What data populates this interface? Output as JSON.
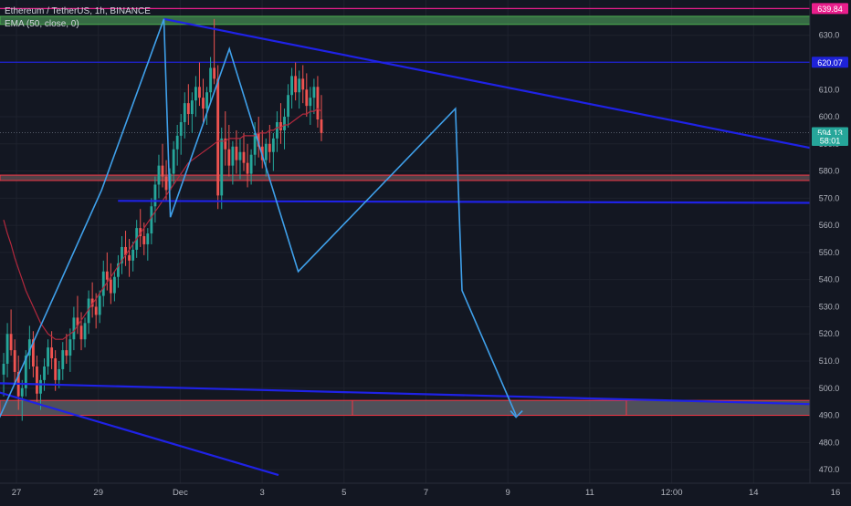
{
  "header": {
    "symbol_line": "Ethereum / TetherUS, 1h, BINANCE",
    "indicator_line": "EMA (50, close, 0)"
  },
  "chart_data": {
    "type": "candlestick",
    "currency": "USDT",
    "ylim": [
      465,
      643
    ],
    "y_ticks": [
      470,
      480,
      490,
      500,
      510,
      520,
      530,
      540,
      550,
      560,
      570,
      580,
      590,
      600,
      610,
      620,
      630
    ],
    "x_ticks": [
      "27",
      "29",
      "Dec",
      "3",
      "5",
      "7",
      "9",
      "11",
      "12:00",
      "14",
      "16"
    ],
    "price_labels": [
      {
        "text": "639.84",
        "value": 639.84,
        "color": "#e91e8c"
      },
      {
        "text": "620.07",
        "value": 620.07,
        "color": "#1e22d8"
      },
      {
        "text": "594.13",
        "value": 594.13,
        "color": "#26a69a"
      },
      {
        "text": "58:01",
        "value": 591.3,
        "color": "#26a69a"
      }
    ],
    "horizontal_lines": [
      {
        "value": 639.84,
        "color": "#e91e8c"
      },
      {
        "value": 620.07,
        "color": "#1e22d8"
      }
    ],
    "zones": [
      {
        "low": 634.0,
        "high": 637.0,
        "fill": "#3d7a4a",
        "border": "#4caf50"
      },
      {
        "low": 576.5,
        "high": 578.5,
        "fill": "#5d4a4f",
        "border": "#f23645"
      },
      {
        "low": 490.0,
        "high": 495.5,
        "fill": "#5a5b63",
        "border": "#f23645"
      }
    ],
    "channel_lines": [
      {
        "from": [
          0.9,
          636.0
        ],
        "to": [
          6.55,
          568.0
        ]
      },
      {
        "from": [
          -0.22,
          502.0
        ],
        "to": [
          6.55,
          491.5
        ]
      },
      {
        "from": [
          -0.22,
          500.5
        ],
        "to": [
          1.6,
          468.0
        ]
      },
      {
        "from": [
          0.62,
          569.0
        ],
        "to": [
          6.55,
          568.0
        ]
      }
    ],
    "zigzag": [
      [
        -0.22,
        503
      ],
      [
        -0.12,
        487
      ],
      [
        0.52,
        573
      ],
      [
        0.9,
        636
      ],
      [
        0.94,
        563
      ],
      [
        1.3,
        625
      ],
      [
        1.72,
        543
      ],
      [
        2.68,
        603
      ],
      [
        2.72,
        536
      ],
      [
        3.05,
        490
      ]
    ],
    "arrow_end": [
      3.05,
      490
    ],
    "last_price": 594.13,
    "ema_period": 50,
    "candles": [
      [
        505,
        513,
        497,
        509
      ],
      [
        509,
        524,
        504,
        520
      ],
      [
        520,
        529,
        512,
        514
      ],
      [
        514,
        518,
        502,
        506
      ],
      [
        506,
        512,
        492,
        497
      ],
      [
        497,
        503,
        488,
        500
      ],
      [
        500,
        514,
        497,
        512
      ],
      [
        512,
        523,
        507,
        518
      ],
      [
        518,
        521,
        504,
        508
      ],
      [
        508,
        512,
        495,
        498
      ],
      [
        498,
        505,
        492,
        503
      ],
      [
        503,
        511,
        499,
        508
      ],
      [
        508,
        518,
        505,
        515
      ],
      [
        515,
        521,
        507,
        511
      ],
      [
        511,
        514,
        499,
        503
      ],
      [
        503,
        510,
        500,
        507
      ],
      [
        507,
        517,
        503,
        514
      ],
      [
        514,
        520,
        509,
        512
      ],
      [
        512,
        522,
        506,
        518
      ],
      [
        518,
        530,
        514,
        526
      ],
      [
        526,
        534,
        520,
        523
      ],
      [
        523,
        528,
        514,
        518
      ],
      [
        518,
        526,
        515,
        524
      ],
      [
        524,
        536,
        520,
        533
      ],
      [
        533,
        539,
        526,
        530
      ],
      [
        530,
        535,
        522,
        527
      ],
      [
        527,
        536,
        524,
        534
      ],
      [
        534,
        547,
        530,
        543
      ],
      [
        543,
        550,
        536,
        540
      ],
      [
        540,
        546,
        531,
        535
      ],
      [
        535,
        543,
        532,
        541
      ],
      [
        541,
        549,
        537,
        546
      ],
      [
        546,
        556,
        542,
        552
      ],
      [
        552,
        558,
        545,
        549
      ],
      [
        549,
        555,
        541,
        547
      ],
      [
        547,
        554,
        543,
        551
      ],
      [
        551,
        562,
        548,
        559
      ],
      [
        559,
        566,
        552,
        556
      ],
      [
        556,
        561,
        549,
        553
      ],
      [
        553,
        559,
        547,
        557
      ],
      [
        557,
        570,
        553,
        567
      ],
      [
        567,
        578,
        561,
        575
      ],
      [
        575,
        586,
        570,
        582
      ],
      [
        582,
        590,
        574,
        578
      ],
      [
        578,
        584,
        569,
        573
      ],
      [
        573,
        581,
        568,
        579
      ],
      [
        579,
        591,
        575,
        588
      ],
      [
        588,
        597,
        582,
        593
      ],
      [
        593,
        601,
        586,
        598
      ],
      [
        598,
        609,
        592,
        605
      ],
      [
        605,
        612,
        597,
        601
      ],
      [
        601,
        609,
        594,
        606
      ],
      [
        606,
        615,
        600,
        611
      ],
      [
        611,
        620,
        604,
        607
      ],
      [
        607,
        614,
        598,
        603
      ],
      [
        603,
        611,
        597,
        609
      ],
      [
        609,
        622,
        605,
        618
      ],
      [
        618,
        636,
        612,
        614
      ],
      [
        614,
        619,
        566,
        571
      ],
      [
        571,
        596,
        566,
        592
      ],
      [
        592,
        602,
        582,
        588
      ],
      [
        588,
        597,
        578,
        582
      ],
      [
        582,
        591,
        575,
        589
      ],
      [
        589,
        595,
        579,
        584
      ],
      [
        584,
        592,
        577,
        587
      ],
      [
        587,
        594,
        580,
        583
      ],
      [
        583,
        590,
        574,
        579
      ],
      [
        579,
        588,
        575,
        586
      ],
      [
        586,
        598,
        582,
        594
      ],
      [
        594,
        600,
        585,
        589
      ],
      [
        589,
        595,
        581,
        584
      ],
      [
        584,
        592,
        578,
        590
      ],
      [
        590,
        597,
        583,
        587
      ],
      [
        587,
        594,
        580,
        592
      ],
      [
        592,
        602,
        587,
        598
      ],
      [
        598,
        605,
        590,
        595
      ],
      [
        595,
        603,
        588,
        600
      ],
      [
        600,
        612,
        596,
        608
      ],
      [
        608,
        618,
        603,
        615
      ],
      [
        615,
        620,
        606,
        609
      ],
      [
        609,
        617,
        603,
        614
      ],
      [
        614,
        619,
        605,
        610
      ],
      [
        610,
        616,
        600,
        604
      ],
      [
        604,
        611,
        597,
        607
      ],
      [
        607,
        614,
        601,
        611
      ],
      [
        611,
        615,
        596,
        599
      ],
      [
        599,
        608,
        591,
        594
      ]
    ],
    "ema_values": [
      562,
      557,
      553,
      548,
      544,
      540,
      536,
      533,
      530,
      527,
      524,
      522,
      520,
      519,
      518,
      518,
      518,
      519,
      520,
      521,
      523,
      525,
      527,
      529,
      531,
      533,
      535,
      537,
      539,
      541,
      543,
      545,
      547,
      549,
      551,
      553,
      555,
      557,
      559,
      561,
      563,
      565,
      567,
      569,
      571,
      573,
      575,
      577,
      579,
      581,
      583,
      584,
      585,
      586,
      587,
      588,
      589,
      590,
      591,
      591,
      591,
      592,
      592,
      592,
      592,
      593,
      593,
      593,
      593,
      594,
      594,
      594,
      595,
      595,
      596,
      596,
      597,
      597,
      598,
      599,
      600,
      601,
      601,
      602,
      602,
      603,
      602
    ]
  }
}
